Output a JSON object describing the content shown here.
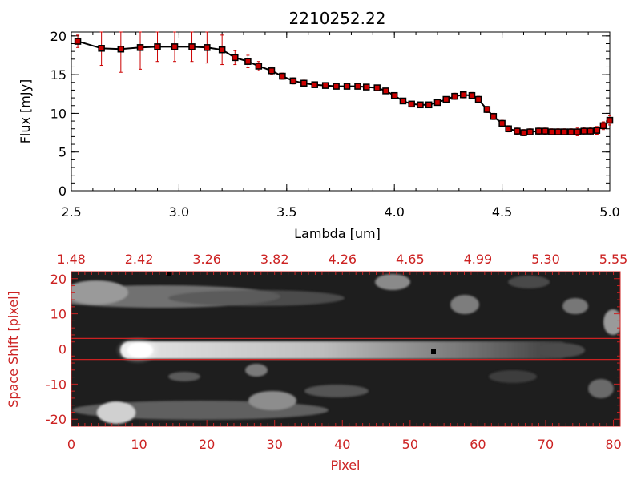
{
  "chart_data": [
    {
      "type": "line",
      "title": "2210252.22",
      "xlabel": "Lambda [um]",
      "ylabel": "Flux [mJy]",
      "xlim": [
        2.5,
        5.0
      ],
      "ylim": [
        0,
        20.5
      ],
      "x_ticks": [
        "2.5",
        "3.0",
        "3.5",
        "4.0",
        "4.5",
        "5.0"
      ],
      "y_ticks": [
        "0",
        "5",
        "10",
        "15",
        "20"
      ],
      "grid": false,
      "line_color": "#000000",
      "marker_color": "#cc0000",
      "errorbar_color": "#cc0000",
      "series": [
        {
          "x": [
            2.53,
            2.64,
            2.73,
            2.82,
            2.9,
            2.98,
            3.06,
            3.13,
            3.2,
            3.26,
            3.32,
            3.37,
            3.43,
            3.48,
            3.53,
            3.58,
            3.63,
            3.68,
            3.73,
            3.78,
            3.83,
            3.87,
            3.92,
            3.96,
            4.0,
            4.04,
            4.08,
            4.12,
            4.16,
            4.2,
            4.24,
            4.28,
            4.32,
            4.36,
            4.39,
            4.43,
            4.46,
            4.5,
            4.53,
            4.57,
            4.6,
            4.63,
            4.67,
            4.7,
            4.73,
            4.76,
            4.79,
            4.82,
            4.85,
            4.88,
            4.91,
            4.94,
            4.97,
            5.0
          ],
          "y": [
            19.3,
            18.4,
            18.3,
            18.5,
            18.6,
            18.6,
            18.6,
            18.5,
            18.2,
            17.2,
            16.7,
            16.1,
            15.5,
            14.8,
            14.2,
            13.9,
            13.7,
            13.6,
            13.5,
            13.5,
            13.5,
            13.4,
            13.3,
            12.9,
            12.3,
            11.6,
            11.2,
            11.1,
            11.1,
            11.4,
            11.8,
            12.2,
            12.4,
            12.3,
            11.8,
            10.5,
            9.6,
            8.7,
            8.0,
            7.7,
            7.5,
            7.6,
            7.7,
            7.7,
            7.6,
            7.6,
            7.6,
            7.6,
            7.6,
            7.7,
            7.7,
            7.8,
            8.4,
            9.1
          ],
          "yerr": [
            0.8,
            2.2,
            3.0,
            2.8,
            1.9,
            1.9,
            1.9,
            2.0,
            1.9,
            0.9,
            0.8,
            0.6,
            0.5,
            0.4,
            0.4,
            0.4,
            0.3,
            0.3,
            0.3,
            0.3,
            0.3,
            0.3,
            0.3,
            0.3,
            0.3,
            0.3,
            0.3,
            0.3,
            0.3,
            0.3,
            0.3,
            0.4,
            0.4,
            0.4,
            0.4,
            0.4,
            0.4,
            0.4,
            0.4,
            0.4,
            0.4,
            0.4,
            0.4,
            0.4,
            0.4,
            0.4,
            0.4,
            0.4,
            0.5,
            0.5,
            0.5,
            0.5,
            0.5,
            0.6
          ]
        }
      ]
    },
    {
      "type": "heatmap",
      "xlabel": "Pixel",
      "ylabel": "Space Shift [pixel]",
      "xlim": [
        0,
        81
      ],
      "ylim": [
        -22,
        22
      ],
      "x_ticks": [
        "0",
        "10",
        "20",
        "30",
        "40",
        "50",
        "60",
        "70",
        "80"
      ],
      "y_ticks": [
        "-20",
        "-10",
        "0",
        "10",
        "20"
      ],
      "top_axis_labels": [
        "1.48",
        "2.42",
        "3.26",
        "3.82",
        "4.26",
        "4.65",
        "4.99",
        "5.30",
        "5.55"
      ],
      "extraction_window": [
        -3,
        3
      ],
      "colormap": "grayscale",
      "axis_color": "#cc2222",
      "trace": [
        {
          "pixel": 10,
          "shift": 0,
          "peak": 1.0
        },
        {
          "pixel": 50,
          "shift": 0,
          "peak": 0.5
        },
        {
          "pixel": 65,
          "shift": 0,
          "peak": 0.25
        }
      ]
    }
  ]
}
